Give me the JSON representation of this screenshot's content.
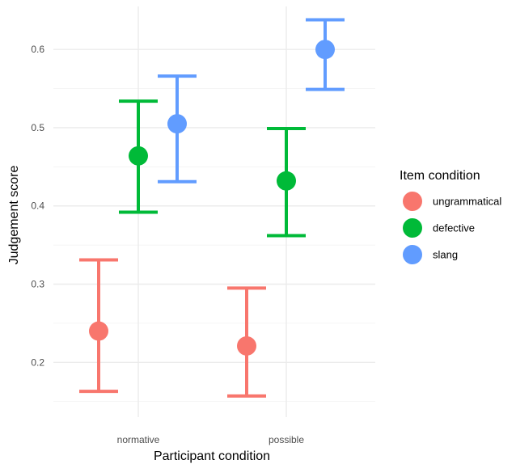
{
  "chart_data": {
    "type": "scatter",
    "title": "",
    "xlabel": "Participant condition",
    "ylabel": "Judgement score",
    "categories": [
      "normative",
      "possible"
    ],
    "yticks": [
      "0.2",
      "0.3",
      "0.4",
      "0.5",
      "0.6"
    ],
    "ylim": [
      0.13,
      0.655
    ],
    "grid": true,
    "legend": {
      "title": "Item condition",
      "placement": "right"
    },
    "series": [
      {
        "name": "ungrammatical",
        "color": "#F8766D",
        "points": [
          {
            "x": "normative",
            "y": 0.24,
            "ymin": 0.163,
            "ymax": 0.331
          },
          {
            "x": "possible",
            "y": 0.221,
            "ymin": 0.157,
            "ymax": 0.295
          }
        ]
      },
      {
        "name": "defective",
        "color": "#00BA38",
        "points": [
          {
            "x": "normative",
            "y": 0.464,
            "ymin": 0.392,
            "ymax": 0.534
          },
          {
            "x": "possible",
            "y": 0.432,
            "ymin": 0.362,
            "ymax": 0.499
          }
        ]
      },
      {
        "name": "slang",
        "color": "#619CFF",
        "points": [
          {
            "x": "normative",
            "y": 0.505,
            "ymin": 0.431,
            "ymax": 0.566
          },
          {
            "x": "possible",
            "y": 0.6,
            "ymin": 0.549,
            "ymax": 0.638
          }
        ]
      }
    ]
  }
}
